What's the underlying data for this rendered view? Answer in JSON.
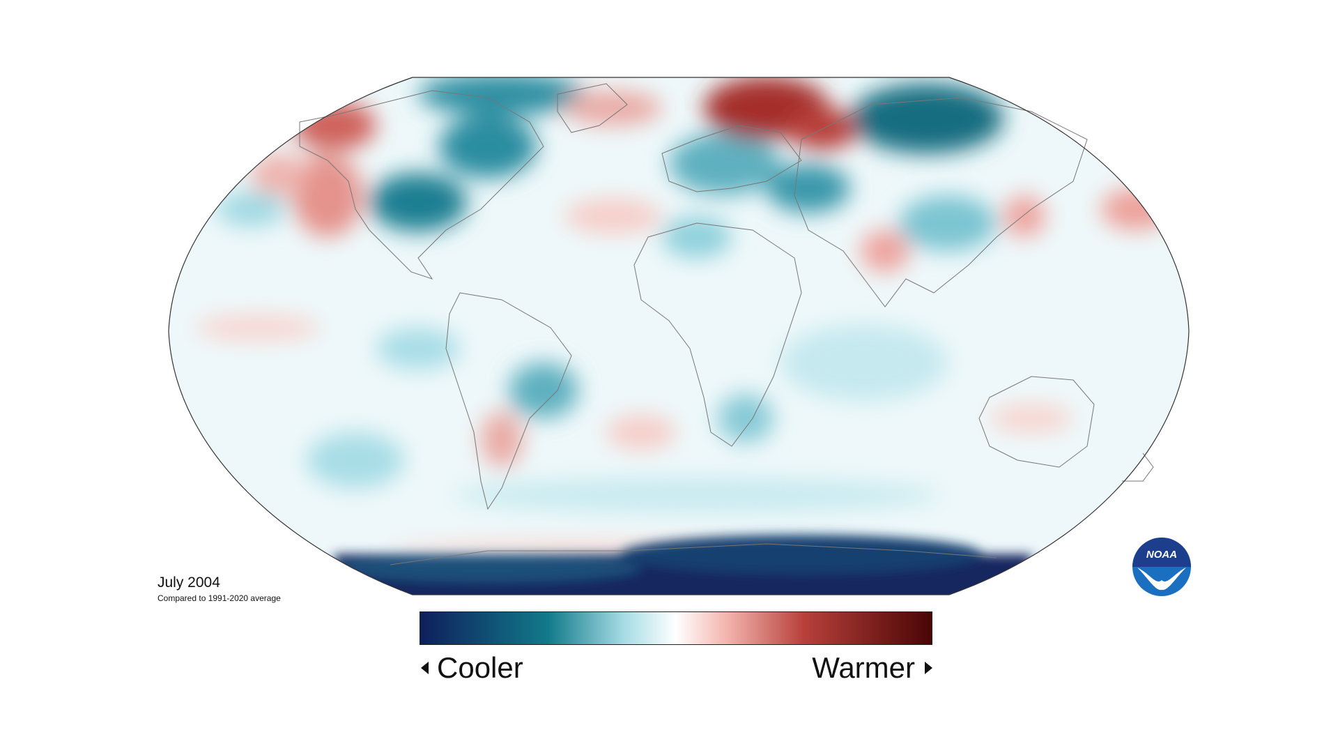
{
  "map": {
    "projection": "Robinson",
    "subject": "temperature anomaly",
    "date_label": "July 2004",
    "comparison_label": "Compared to 1991-2020 average",
    "colors": {
      "cool_extreme": "#0f1f5c",
      "cool": "#117a8a",
      "cool_light": "#a8dde6",
      "neutral": "#ffffff",
      "warm_light": "#f3b4ad",
      "warm": "#b8403b",
      "warm_extreme": "#4a0505"
    }
  },
  "legend": {
    "low_label": "Cooler",
    "high_label": "Warmer"
  },
  "logo": {
    "text": "NOAA",
    "icon": "noaa-logo-icon"
  }
}
